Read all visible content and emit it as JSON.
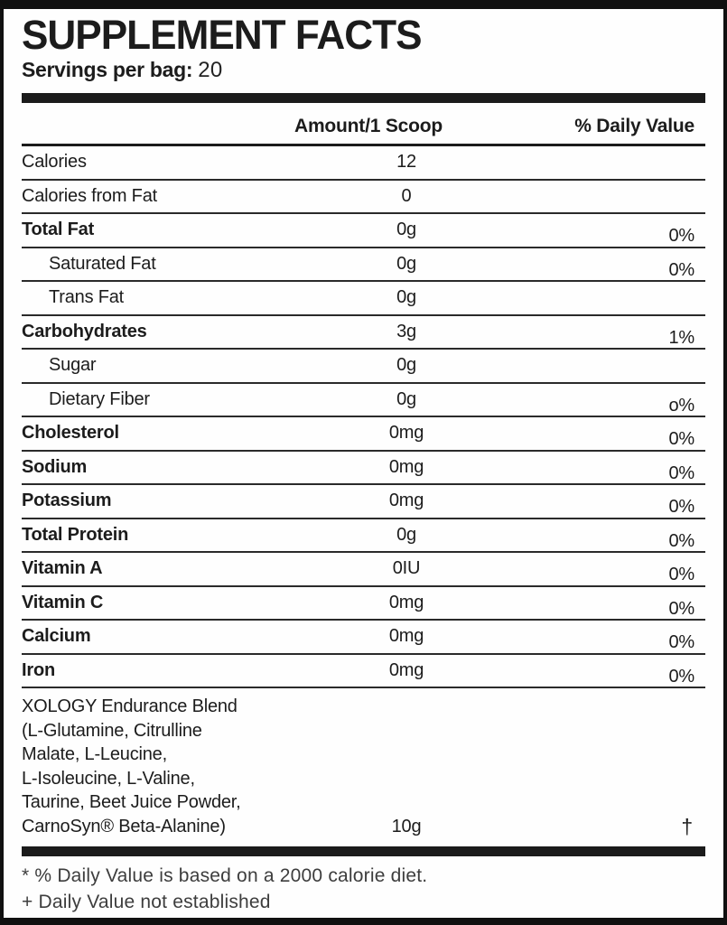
{
  "header": {
    "title": "SUPPLEMENT FACTS",
    "servings_label": "Servings per bag:",
    "servings_value": "20"
  },
  "table": {
    "columns": {
      "amount": "Amount/1 Scoop",
      "daily_value": "% Daily Value"
    },
    "rows": [
      {
        "name": "Calories",
        "amount": "12",
        "dv": "",
        "bold": false,
        "indent": false
      },
      {
        "name": "Calories from Fat",
        "amount": "0",
        "dv": "",
        "bold": false,
        "indent": false
      },
      {
        "name": "Total Fat",
        "amount": "0g",
        "dv": "0%",
        "bold": true,
        "indent": false
      },
      {
        "name": "Saturated Fat",
        "amount": "0g",
        "dv": "0%",
        "bold": false,
        "indent": true
      },
      {
        "name": "Trans Fat",
        "amount": "0g",
        "dv": "",
        "bold": false,
        "indent": true
      },
      {
        "name": "Carbohydrates",
        "amount": "3g",
        "dv": "1%",
        "bold": true,
        "indent": false
      },
      {
        "name": "Sugar",
        "amount": "0g",
        "dv": "",
        "bold": false,
        "indent": true
      },
      {
        "name": "Dietary Fiber",
        "amount": "0g",
        "dv": "o%",
        "bold": false,
        "indent": true
      },
      {
        "name": "Cholesterol",
        "amount": "0mg",
        "dv": "0%",
        "bold": true,
        "indent": false
      },
      {
        "name": "Sodium",
        "amount": "0mg",
        "dv": "0%",
        "bold": true,
        "indent": false
      },
      {
        "name": "Potassium",
        "amount": "0mg",
        "dv": "0%",
        "bold": true,
        "indent": false
      },
      {
        "name": "Total Protein",
        "amount": "0g",
        "dv": "0%",
        "bold": true,
        "indent": false
      },
      {
        "name": "Vitamin A",
        "amount": "0IU",
        "dv": "0%",
        "bold": true,
        "indent": false
      },
      {
        "name": "Vitamin C",
        "amount": "0mg",
        "dv": "0%",
        "bold": true,
        "indent": false
      },
      {
        "name": "Calcium",
        "amount": "0mg",
        "dv": "0%",
        "bold": true,
        "indent": false
      },
      {
        "name": "Iron",
        "amount": "0mg",
        "dv": "0%",
        "bold": true,
        "indent": false
      }
    ],
    "blend": {
      "name": "XOLOGY Endurance Blend\n(L-Glutamine, Citrulline\nMalate, L-Leucine,\nL-Isoleucine, L-Valine,\nTaurine, Beet Juice Powder,\nCarnoSyn® Beta-Alanine)",
      "amount": "10g",
      "dv": "†"
    }
  },
  "footnotes": [
    "* % Daily Value is based on a 2000 calorie diet.",
    "+ Daily Value not established"
  ],
  "colors": {
    "text": "#1c1c1c",
    "rule": "#2a2a2a",
    "bar": "#1b1b1b",
    "footnote_text": "#3d3d3d",
    "background": "#fefefe"
  }
}
